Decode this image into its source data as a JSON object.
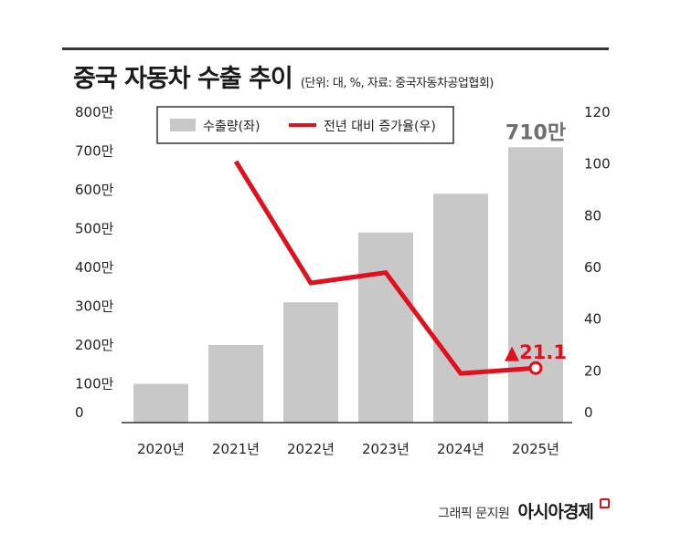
{
  "title": "중국 자동차 수출 추이",
  "subtitle": "(단위: 대, %, 자료: 중국자동차공업협회)",
  "credit": {
    "text": "그래픽 문지원",
    "logo": "아시아경제"
  },
  "colors": {
    "bar": "#c8c8c8",
    "line": "#e0101e",
    "rule": "#333333"
  },
  "chart_data": {
    "type": "bar",
    "categories": [
      "2020년",
      "2021년",
      "2022년",
      "2023년",
      "2024년",
      "2025년"
    ],
    "y_left": {
      "ylim": [
        0,
        800
      ],
      "ticks": [
        0,
        100,
        200,
        300,
        400,
        500,
        600,
        700,
        800
      ],
      "tick_labels": [
        "0",
        "100만",
        "200만",
        "300만",
        "400만",
        "500만",
        "600만",
        "700만",
        "800만"
      ]
    },
    "y_right": {
      "ylim": [
        0,
        120
      ],
      "ticks": [
        0,
        20,
        40,
        60,
        80,
        100,
        120
      ],
      "tick_labels": [
        "0",
        "20",
        "40",
        "60",
        "80",
        "100",
        "120"
      ]
    },
    "series": [
      {
        "name": "수출량(좌)",
        "type": "bar",
        "axis": "left",
        "values": [
          100,
          200,
          310,
          490,
          590,
          710
        ]
      },
      {
        "name": "전년 대비 증가율(우)",
        "type": "line",
        "axis": "right",
        "values": [
          null,
          101,
          54,
          58,
          19,
          21.1
        ]
      }
    ],
    "annotations": [
      {
        "text": "710만",
        "category": "2025년",
        "series": "수출량(좌)"
      },
      {
        "text": "▲21.1",
        "category": "2025년",
        "series": "전년 대비 증가율(우)"
      }
    ],
    "legend": "top",
    "grid": false
  }
}
